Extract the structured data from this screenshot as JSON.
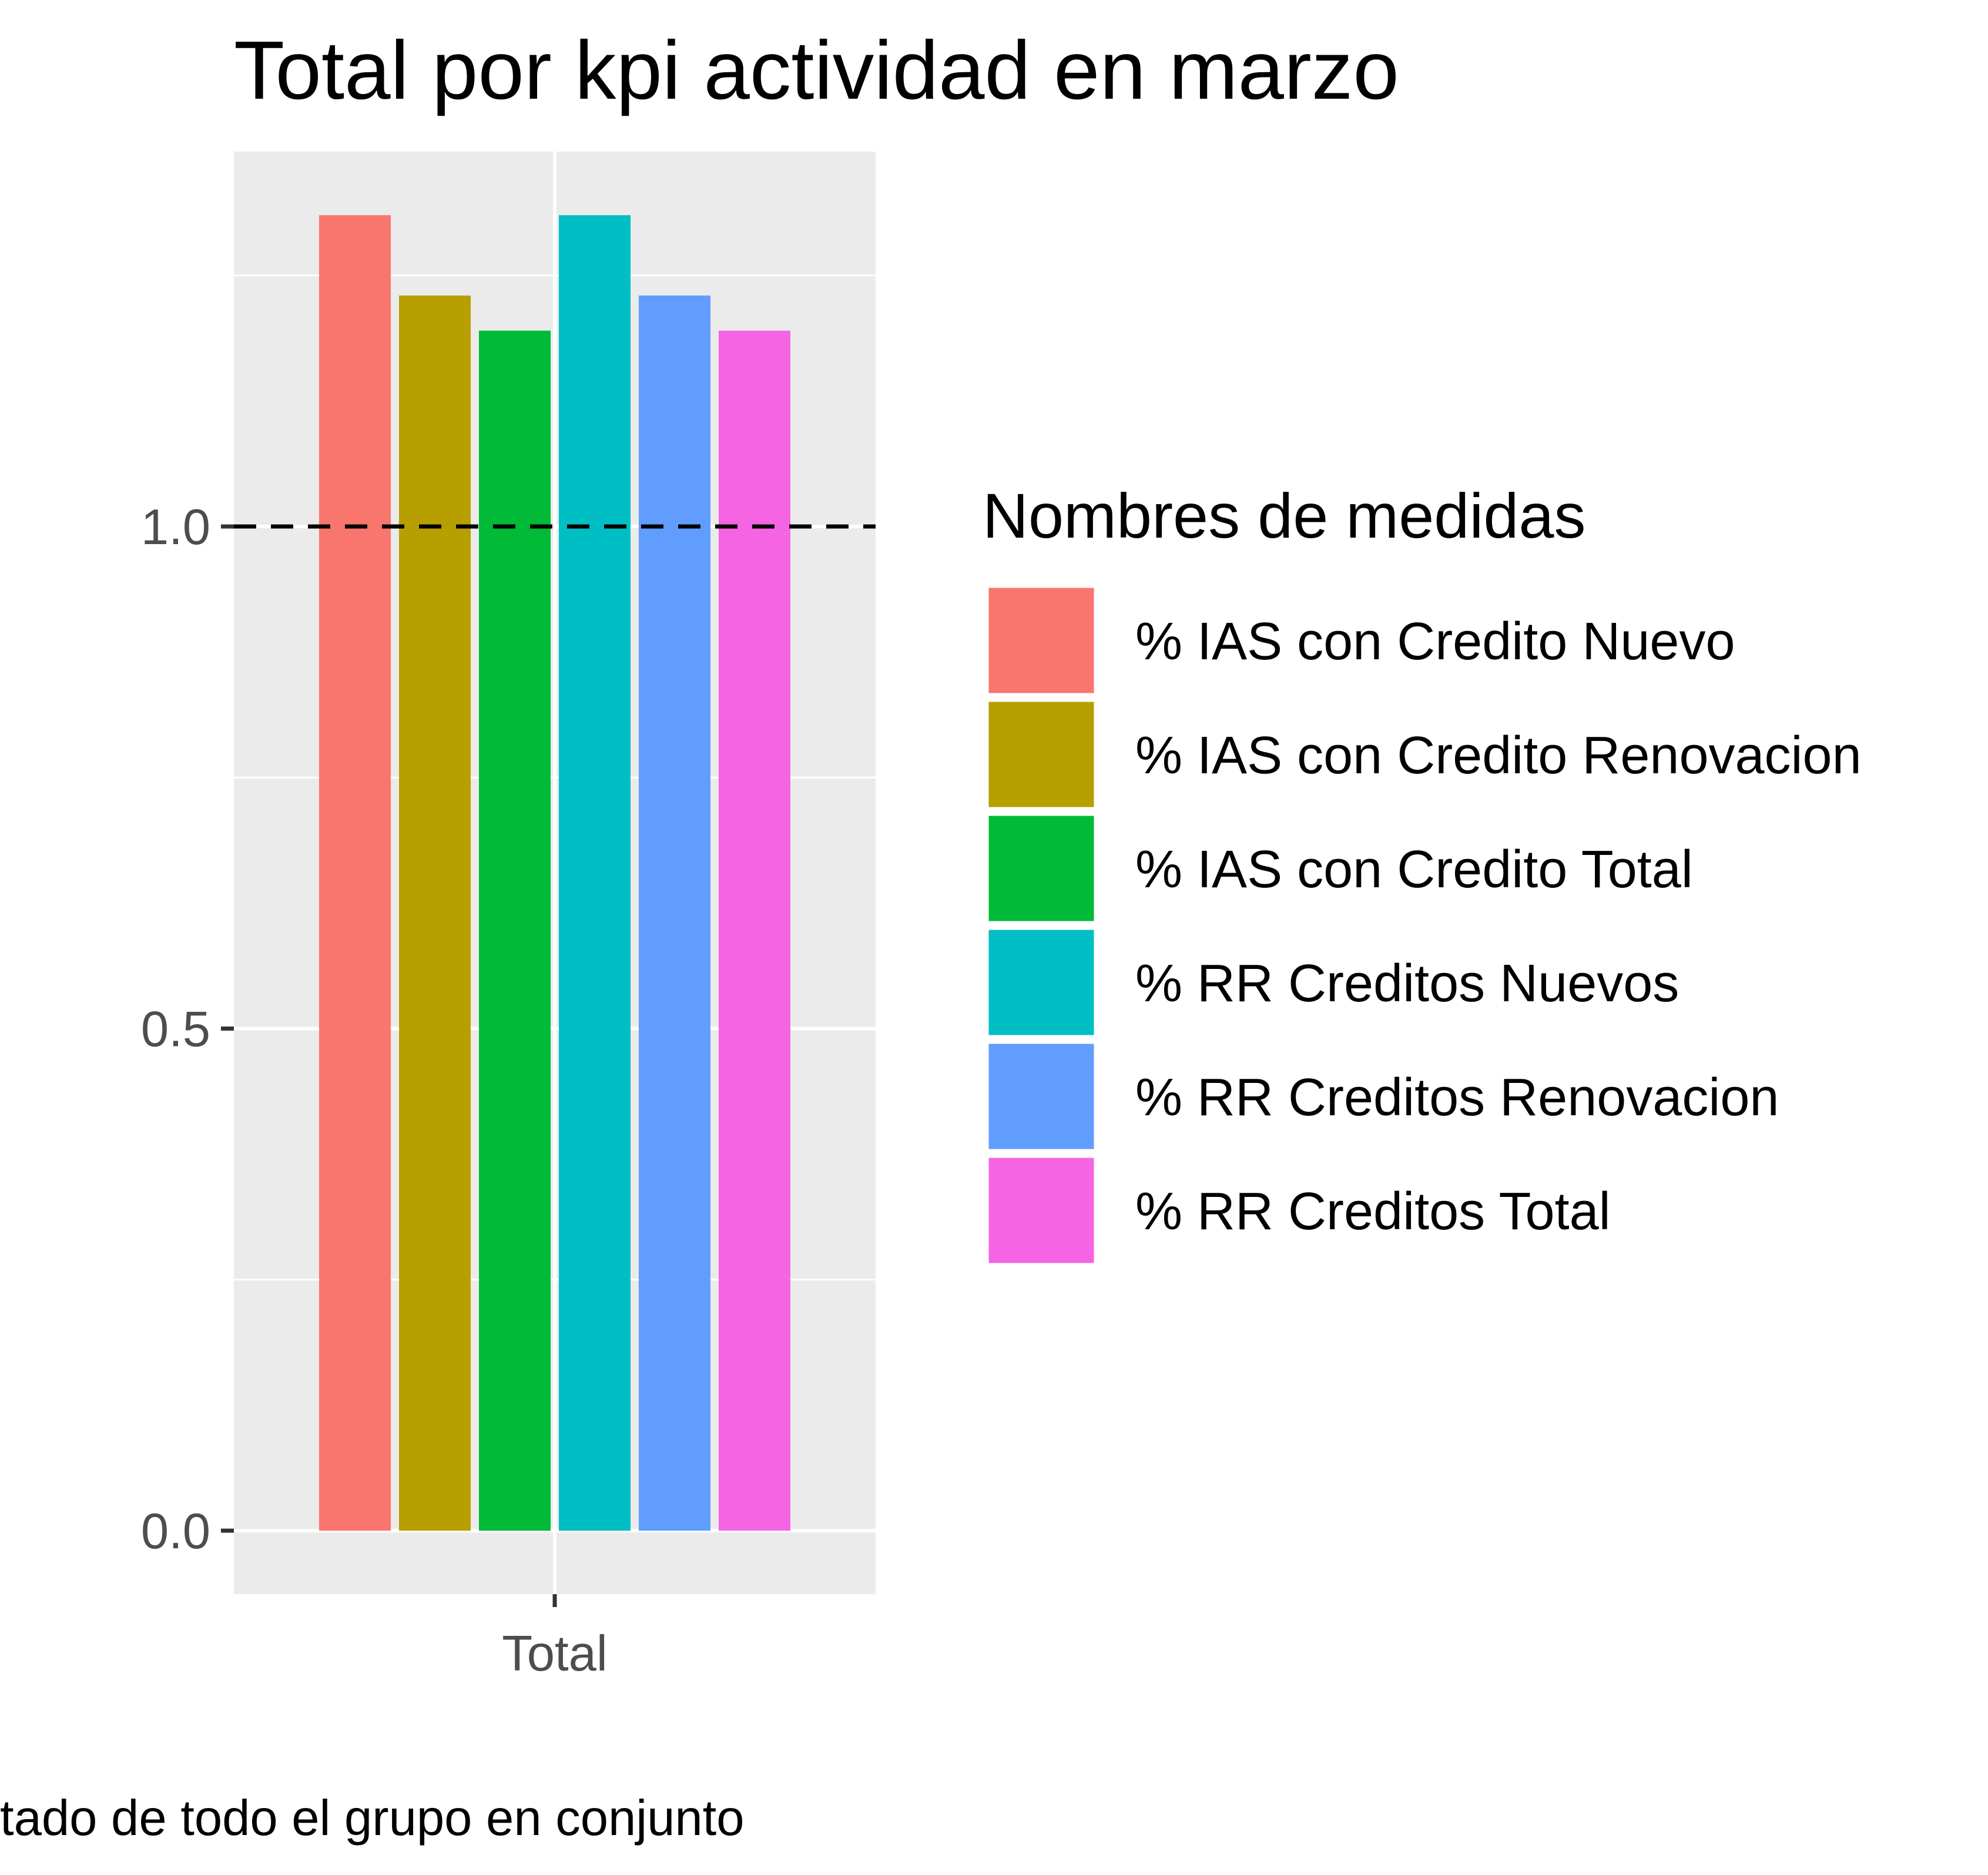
{
  "chart_data": {
    "type": "bar",
    "title": "Total por kpi actividad en marzo",
    "xlabel": "tado de todo el grupo en conjunto",
    "ylabel": "",
    "categories": [
      "Total"
    ],
    "series": [
      {
        "name": "% IAS con Credito Nuevo",
        "values": [
          1.31
        ],
        "color": "#F8766D"
      },
      {
        "name": "% IAS con Credito Renovacion",
        "values": [
          1.23
        ],
        "color": "#B79F00"
      },
      {
        "name": "% IAS con Credito Total",
        "values": [
          1.195
        ],
        "color": "#00BA38"
      },
      {
        "name": "% RR Creditos Nuevos",
        "values": [
          1.31
        ],
        "color": "#00BFC4"
      },
      {
        "name": "% RR Creditos Renovacion",
        "values": [
          1.23
        ],
        "color": "#619CFF"
      },
      {
        "name": "% RR Creditos Total",
        "values": [
          1.195
        ],
        "color": "#F564E3"
      }
    ],
    "y_ticks": [
      "0.0",
      "0.5",
      "1.0"
    ],
    "y_tick_values": [
      0.0,
      0.5,
      1.0
    ],
    "ylim": [
      -0.065,
      1.375
    ],
    "reference_line": {
      "value": 1.0,
      "style": "dashed",
      "color": "#000000"
    },
    "grid": true,
    "panel_background": "#EBEBEB",
    "legend": {
      "title": "Nombres de medidas",
      "position": "right"
    }
  }
}
